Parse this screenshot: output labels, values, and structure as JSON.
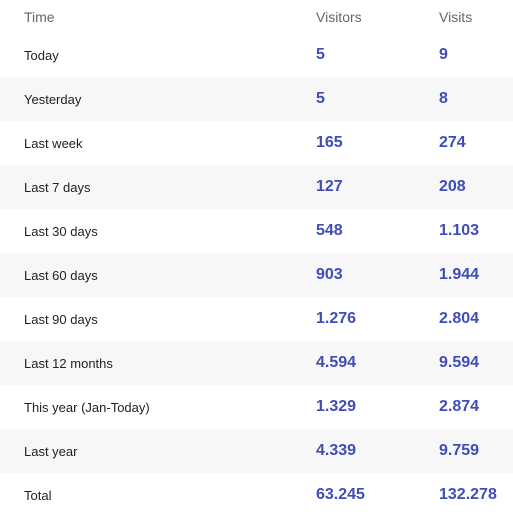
{
  "table": {
    "header": [
      "Time",
      "Visitors",
      "Visits"
    ],
    "rows": [
      [
        "Today",
        "5",
        "9"
      ],
      [
        "Yesterday",
        "5",
        "8"
      ],
      [
        "Last week",
        "165",
        "274"
      ],
      [
        "Last 7 days",
        "127",
        "208"
      ],
      [
        "Last 30 days",
        "548",
        "1.103"
      ],
      [
        "Last 60 days",
        "903",
        "1.944"
      ],
      [
        "Last 90 days",
        "1.276",
        "2.804"
      ],
      [
        "Last 12 months",
        "4.594",
        "9.594"
      ],
      [
        "This year (Jan-Today)",
        "1.329",
        "2.874"
      ],
      [
        "Last year",
        "4.339",
        "9.759"
      ],
      [
        "Total",
        "63.245",
        "132.278"
      ]
    ]
  }
}
